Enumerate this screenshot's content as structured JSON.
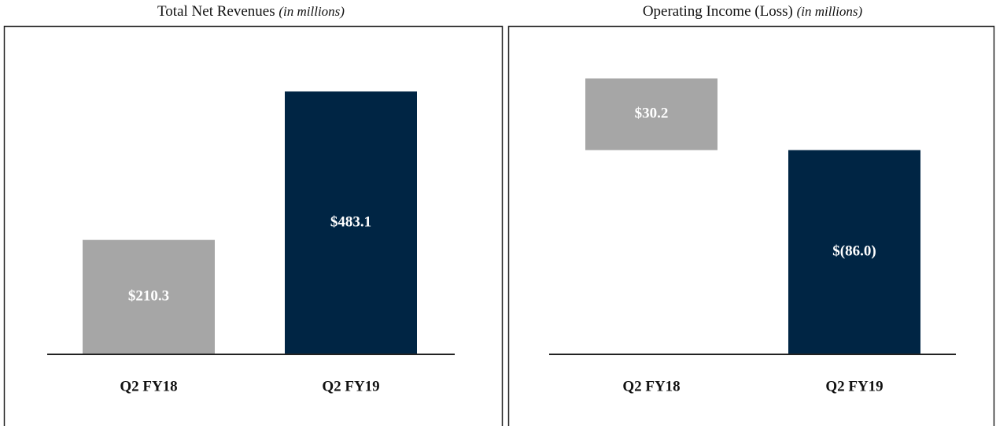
{
  "chart_data": [
    {
      "type": "bar",
      "title": "Total Net Revenues",
      "title_note": "(in millions)",
      "categories": [
        "Q2 FY18",
        "Q2 FY19"
      ],
      "values": [
        210.3,
        483.1
      ],
      "value_labels": [
        "$210.3",
        "$483.1"
      ],
      "colors": [
        "#a6a6a6",
        "#002544"
      ],
      "ylim": [
        0,
        550
      ]
    },
    {
      "type": "bar",
      "title": "Operating Income (Loss)",
      "title_note": "(in millions)",
      "categories": [
        "Q2 FY18",
        "Q2 FY19"
      ],
      "values": [
        30.2,
        -86.0
      ],
      "value_labels": [
        "$30.2",
        "$(86.0)"
      ],
      "colors": [
        "#a6a6a6",
        "#002544"
      ],
      "ylim": [
        -86,
        40
      ]
    }
  ]
}
